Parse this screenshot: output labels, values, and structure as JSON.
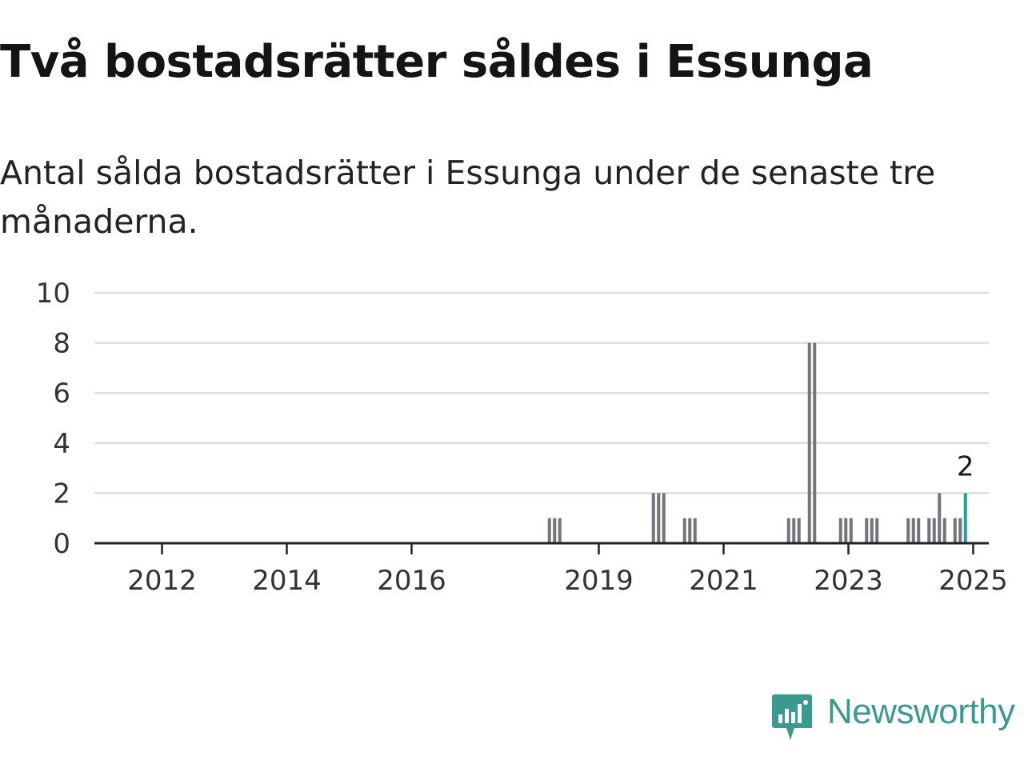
{
  "title": "Två bostadsrätter såldes i Essunga",
  "subtitle": "Antal sålda bostadsrätter i Essunga under de senaste tre månaderna.",
  "brand": {
    "name": "Newsworthy",
    "color": "#3a9a90",
    "icon": "newsworthy-logo-icon"
  },
  "colors": {
    "bar": "#74747c",
    "highlight": "#1fa39b",
    "grid": "#dddddd",
    "axis": "#222222"
  },
  "chart_data": {
    "type": "bar",
    "title": "Två bostadsrätter såldes i Essunga",
    "xlabel": "",
    "ylabel": "",
    "ylim": [
      0,
      10
    ],
    "yticks": [
      0,
      2,
      4,
      6,
      8,
      10
    ],
    "xlim": [
      "2011-06",
      "2025-10"
    ],
    "xticks": [
      "2012",
      "2014",
      "2016",
      "2019",
      "2021",
      "2023",
      "2025"
    ],
    "grid": true,
    "legend": "none",
    "highlight_label": "2",
    "series": [
      {
        "values": [
          {
            "x": "2018-09",
            "y": 1
          },
          {
            "x": "2018-10",
            "y": 1
          },
          {
            "x": "2018-11",
            "y": 1
          },
          {
            "x": "2020-05",
            "y": 2
          },
          {
            "x": "2020-06",
            "y": 2
          },
          {
            "x": "2020-07",
            "y": 2
          },
          {
            "x": "2020-11",
            "y": 1
          },
          {
            "x": "2020-12",
            "y": 1
          },
          {
            "x": "2021-01",
            "y": 1
          },
          {
            "x": "2022-07",
            "y": 1
          },
          {
            "x": "2022-08",
            "y": 1
          },
          {
            "x": "2022-09",
            "y": 1
          },
          {
            "x": "2022-11",
            "y": 8
          },
          {
            "x": "2022-12",
            "y": 8
          },
          {
            "x": "2023-05",
            "y": 1
          },
          {
            "x": "2023-06",
            "y": 1
          },
          {
            "x": "2023-07",
            "y": 1
          },
          {
            "x": "2023-10",
            "y": 1
          },
          {
            "x": "2023-11",
            "y": 1
          },
          {
            "x": "2023-12",
            "y": 1
          },
          {
            "x": "2024-06",
            "y": 1
          },
          {
            "x": "2024-07",
            "y": 1
          },
          {
            "x": "2024-08",
            "y": 1
          },
          {
            "x": "2024-10",
            "y": 1
          },
          {
            "x": "2024-11",
            "y": 1
          },
          {
            "x": "2024-12",
            "y": 2
          },
          {
            "x": "2025-01",
            "y": 1
          },
          {
            "x": "2025-03",
            "y": 1
          },
          {
            "x": "2025-04",
            "y": 1
          },
          {
            "x": "2025-05",
            "y": 2,
            "highlight": true
          }
        ]
      }
    ]
  }
}
